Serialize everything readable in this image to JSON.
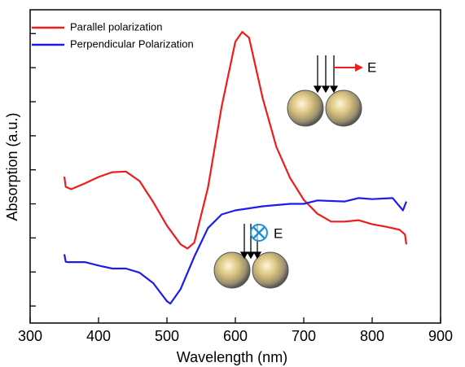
{
  "chart_data": {
    "type": "line",
    "x_label": "Wavelength (nm)",
    "y_label": "Absorption (a.u.)",
    "xlim": [
      300,
      900
    ],
    "xticks": [
      300,
      400,
      500,
      600,
      700,
      800,
      900
    ],
    "ylim": [
      -0.5,
      8.7
    ],
    "yticks": [
      0,
      1,
      2,
      3,
      4,
      5,
      6,
      7,
      8
    ],
    "ytick_labels": false,
    "legend": "upper left",
    "annotations": [
      "E",
      "E"
    ],
    "series": [
      {
        "name": "Parallel polarization",
        "color": "#ee1c1c",
        "x": [
          350,
          352,
          360,
          380,
          400,
          420,
          440,
          460,
          480,
          500,
          520,
          530,
          540,
          560,
          580,
          600,
          610,
          620,
          640,
          660,
          680,
          700,
          720,
          740,
          760,
          780,
          800,
          820,
          840,
          848,
          850
        ],
        "values": [
          3.8,
          3.5,
          3.43,
          3.6,
          3.79,
          3.93,
          3.95,
          3.67,
          3.05,
          2.36,
          1.81,
          1.69,
          1.86,
          3.48,
          5.86,
          7.76,
          8.05,
          7.88,
          6.1,
          4.67,
          3.76,
          3.12,
          2.71,
          2.48,
          2.48,
          2.52,
          2.4,
          2.33,
          2.24,
          2.1,
          1.81
        ]
      },
      {
        "name": "Perpendicular Polarization",
        "color": "#1c1cee",
        "x": [
          350,
          352,
          355,
          380,
          400,
          420,
          440,
          460,
          480,
          500,
          505,
          520,
          540,
          560,
          580,
          600,
          640,
          680,
          700,
          720,
          760,
          780,
          800,
          830,
          845,
          850
        ],
        "values": [
          1.52,
          1.3,
          1.29,
          1.29,
          1.19,
          1.1,
          1.1,
          0.98,
          0.67,
          0.14,
          0.07,
          0.5,
          1.45,
          2.29,
          2.69,
          2.81,
          2.93,
          3.0,
          3.0,
          3.1,
          3.07,
          3.17,
          3.14,
          3.17,
          2.81,
          3.07
        ]
      }
    ]
  }
}
